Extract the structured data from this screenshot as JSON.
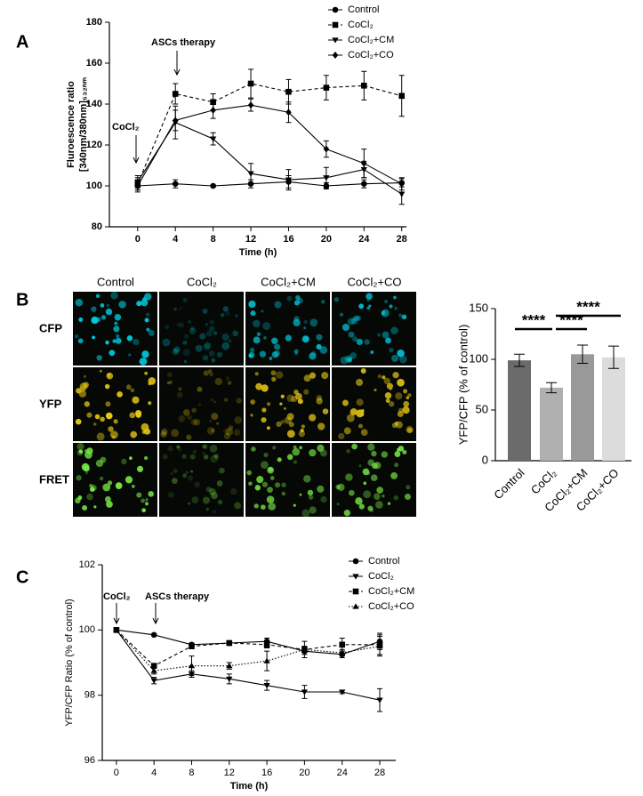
{
  "panel_labels": [
    "A",
    "B",
    "C"
  ],
  "micrographs": {
    "columns": [
      "Control",
      "CoCl₂",
      "CoCl₂+CM",
      "CoCl₂+CO"
    ],
    "rows": [
      "CFP",
      "YFP",
      "FRET"
    ]
  },
  "chart_data": [
    {
      "type": "line",
      "x": [
        0,
        4,
        8,
        12,
        16,
        20,
        24,
        28
      ],
      "xlim": [
        -3,
        28.5
      ],
      "xticks": [
        0,
        4,
        8,
        12,
        16,
        20,
        24,
        28
      ],
      "ylim": [
        80,
        180
      ],
      "yticks": [
        80,
        100,
        120,
        140,
        160,
        180
      ],
      "xlabel": "Time (h)",
      "ylabel": [
        "Fluroescence ratio",
        "[340nm/380nm]₅₃₂ₙₘ"
      ],
      "annotations": [
        "ASCs  therapy",
        "CoCl₂"
      ],
      "series": [
        {
          "name": "Control",
          "color": "#000000",
          "marker": "circle",
          "line_style": "solid",
          "values": [
            100,
            101,
            100,
            101,
            102,
            100,
            101,
            101.5
          ],
          "errors": [
            2,
            2,
            0.5,
            2,
            3,
            1.5,
            2,
            2
          ]
        },
        {
          "name": "CoCl₂",
          "color": "#000000",
          "marker": "square",
          "line_style": "dashed",
          "values": [
            101,
            145,
            141,
            150,
            146,
            148,
            149,
            144
          ],
          "errors": [
            3,
            5,
            4,
            7,
            6,
            6,
            7,
            10
          ]
        },
        {
          "name": "CoCl₂+CM",
          "color": "#000000",
          "marker": "triangle-down",
          "line_style": "solid",
          "values": [
            102,
            131,
            123,
            106,
            103,
            104,
            108,
            96
          ],
          "errors": [
            3,
            8,
            3,
            5,
            5,
            5,
            4,
            5
          ]
        },
        {
          "name": "CoCl₂+CO",
          "color": "#000000",
          "marker": "diamond",
          "line_style": "solid",
          "values": [
            100,
            132,
            137,
            139.5,
            136,
            118,
            111,
            101
          ],
          "errors": [
            3,
            5,
            4,
            3,
            5,
            4,
            7,
            3
          ]
        }
      ]
    },
    {
      "type": "bar",
      "categories": [
        "Control",
        "CoCl₂",
        "CoCl₂+CM",
        "CoCl₂+CO"
      ],
      "values": [
        99,
        72,
        105,
        102
      ],
      "errors": [
        6,
        5,
        9,
        11
      ],
      "colors": [
        "#6b6b6b",
        "#b0b0b0",
        "#999999",
        "#dcdcdc"
      ],
      "ylim": [
        0,
        150
      ],
      "yticks": [
        0,
        50,
        100,
        150
      ],
      "ylabel": "YFP/CFP (% of control)",
      "significance": [
        "****",
        "****",
        "****"
      ]
    },
    {
      "type": "line",
      "x": [
        0,
        4,
        8,
        12,
        16,
        20,
        24,
        28
      ],
      "xlim": [
        -1.5,
        29.7
      ],
      "xticks": [
        0,
        4,
        8,
        12,
        16,
        20,
        24,
        28
      ],
      "ylim": [
        96,
        102
      ],
      "yticks": [
        96,
        98,
        100,
        102
      ],
      "xlabel": "Time (h)",
      "ylabel": [
        "YFP/CFP Ratio (% of control)"
      ],
      "annotations": [
        "CoCl₂",
        "ASCs therapy"
      ],
      "series": [
        {
          "name": "Control",
          "color": "#000000",
          "marker": "circle",
          "line_style": "solid",
          "values": [
            100,
            99.85,
            99.55,
            99.6,
            99.65,
            99.35,
            99.25,
            99.65
          ],
          "errors": [
            0,
            0.03,
            0.05,
            0.05,
            0.1,
            0.1,
            0.1,
            0.25
          ]
        },
        {
          "name": "CoCl₂",
          "color": "#000000",
          "marker": "triangle-down",
          "line_style": "solid",
          "values": [
            100,
            98.45,
            98.65,
            98.5,
            98.3,
            98.1,
            98.1,
            97.85
          ],
          "errors": [
            0,
            0.1,
            0.1,
            0.15,
            0.15,
            0.2,
            0.05,
            0.35
          ]
        },
        {
          "name": "CoCl₂+CM",
          "color": "#000000",
          "marker": "square",
          "line_style": "dashed",
          "values": [
            100,
            98.9,
            99.5,
            99.6,
            99.55,
            99.4,
            99.55,
            99.55
          ],
          "errors": [
            0,
            0.05,
            0.05,
            0.05,
            0.1,
            0.25,
            0.2,
            0.3
          ]
        },
        {
          "name": "CoCl₂+CO",
          "color": "#000000",
          "marker": "triangle-up",
          "line_style": "dotted",
          "values": [
            100,
            98.75,
            98.9,
            98.9,
            99.05,
            99.4,
            99.3,
            99.5
          ],
          "errors": [
            0,
            0.1,
            0.3,
            0.1,
            0.3,
            0.1,
            0.1,
            0.3
          ]
        }
      ]
    }
  ]
}
